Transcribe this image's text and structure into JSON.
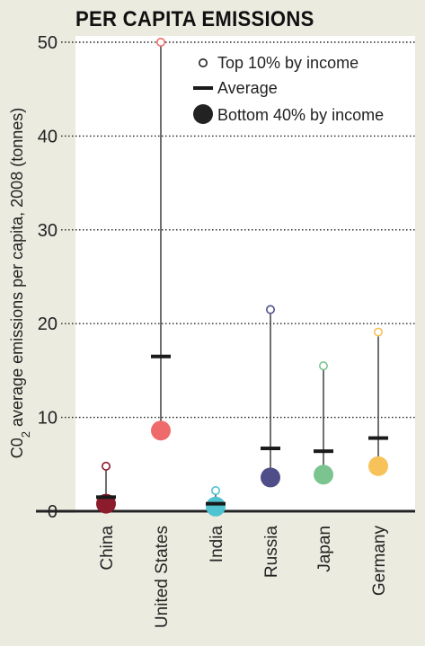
{
  "title": "PER CAPITA EMISSIONS",
  "chart_data": {
    "type": "range-dot",
    "ylabel_prefix": "C0",
    "ylabel_sub": "2",
    "ylabel_rest": " average emissions per capita, 2008 (tonnes)",
    "ylim": [
      0,
      50
    ],
    "yticks": [
      0,
      10,
      20,
      30,
      40,
      50
    ],
    "grid": true,
    "legend_position": "top-right",
    "legend": {
      "top": "Top 10% by income",
      "average": "Average",
      "bottom": "Bottom 40% by income"
    },
    "categories": [
      "China",
      "United States",
      "India",
      "Russia",
      "Japan",
      "Germany"
    ],
    "colors": [
      "#8b1c2c",
      "#ef6a6a",
      "#4fc3cf",
      "#4f4e88",
      "#7cc48f",
      "#f7c25a"
    ],
    "series": [
      {
        "name": "Top 10% by income",
        "values": [
          4.8,
          50,
          2.2,
          21.5,
          15.5,
          19.1
        ]
      },
      {
        "name": "Average",
        "values": [
          1.5,
          16.5,
          0.8,
          6.7,
          6.4,
          7.8
        ]
      },
      {
        "name": "Bottom 40% by income",
        "values": [
          0.8,
          8.6,
          0.5,
          3.6,
          3.9,
          4.8
        ]
      }
    ]
  }
}
